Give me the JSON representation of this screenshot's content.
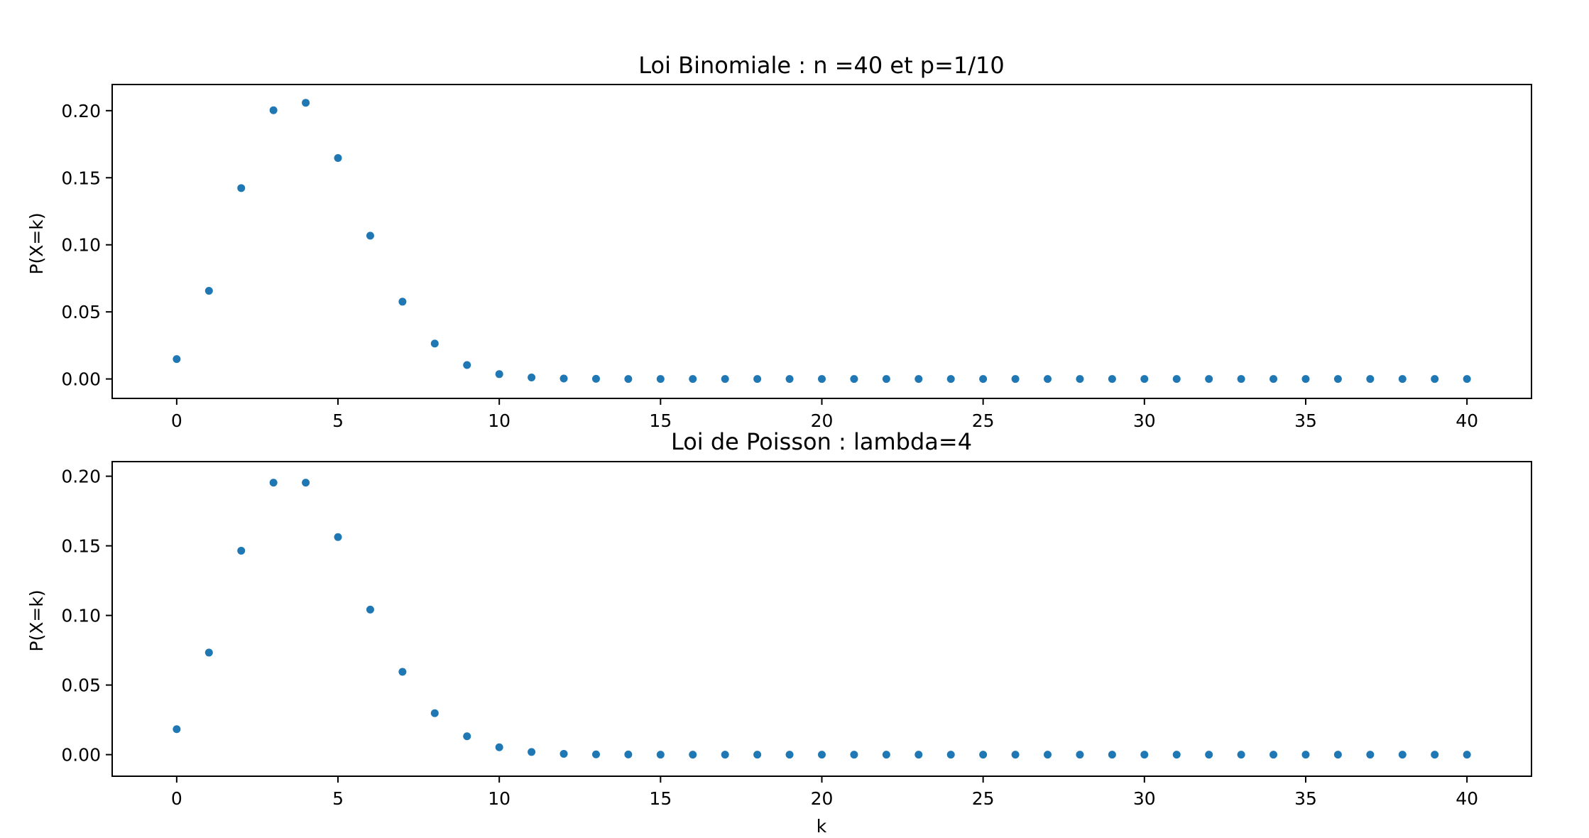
{
  "chart_data": [
    {
      "type": "scatter",
      "title": "Loi Binomiale : n =40 et p=1/10",
      "xlabel": "",
      "ylabel": "P(X=k)",
      "xlim": [
        -2,
        42
      ],
      "ylim": [
        -0.0145,
        0.2195
      ],
      "xticks": [
        0,
        5,
        10,
        15,
        20,
        25,
        30,
        35,
        40
      ],
      "xtick_labels": [
        "0",
        "5",
        "10",
        "15",
        "20",
        "25",
        "30",
        "35",
        "40"
      ],
      "yticks": [
        0.0,
        0.05,
        0.1,
        0.15,
        0.2
      ],
      "ytick_labels": [
        "0.00",
        "0.05",
        "0.10",
        "0.15",
        "0.20"
      ],
      "grid": false,
      "marker_color": "#1f77b4",
      "series": [
        {
          "x": [
            0,
            1,
            2,
            3,
            4,
            5,
            6,
            7,
            8,
            9,
            10,
            11,
            12,
            13,
            14,
            15,
            16,
            17,
            18,
            19,
            20,
            21,
            22,
            23,
            24,
            25,
            26,
            27,
            28,
            29,
            30,
            31,
            32,
            33,
            34,
            35,
            36,
            37,
            38,
            39,
            40
          ],
          "y": [
            0.0148,
            0.0657,
            0.1423,
            0.2003,
            0.2059,
            0.1647,
            0.1068,
            0.0576,
            0.0264,
            0.0104,
            0.0036,
            0.0011,
            0.0003,
            0.0001,
            0,
            0,
            0,
            0,
            0,
            0,
            0,
            0,
            0,
            0,
            0,
            0,
            0,
            0,
            0,
            0,
            0,
            0,
            0,
            0,
            0,
            0,
            0,
            0,
            0,
            0,
            0
          ]
        }
      ]
    },
    {
      "type": "scatter",
      "title": "Loi de Poisson : lambda=4",
      "xlabel": "k",
      "ylabel": "P(X=k)",
      "xlim": [
        -2,
        42
      ],
      "ylim": [
        -0.0155,
        0.2105
      ],
      "xticks": [
        0,
        5,
        10,
        15,
        20,
        25,
        30,
        35,
        40
      ],
      "xtick_labels": [
        "0",
        "5",
        "10",
        "15",
        "20",
        "25",
        "30",
        "35",
        "40"
      ],
      "yticks": [
        0.0,
        0.05,
        0.1,
        0.15,
        0.2
      ],
      "ytick_labels": [
        "0.00",
        "0.05",
        "0.10",
        "0.15",
        "0.20"
      ],
      "grid": false,
      "marker_color": "#1f77b4",
      "series": [
        {
          "x": [
            0,
            1,
            2,
            3,
            4,
            5,
            6,
            7,
            8,
            9,
            10,
            11,
            12,
            13,
            14,
            15,
            16,
            17,
            18,
            19,
            20,
            21,
            22,
            23,
            24,
            25,
            26,
            27,
            28,
            29,
            30,
            31,
            32,
            33,
            34,
            35,
            36,
            37,
            38,
            39,
            40
          ],
          "y": [
            0.0183,
            0.0733,
            0.1465,
            0.1954,
            0.1954,
            0.1563,
            0.1042,
            0.0595,
            0.0298,
            0.0132,
            0.0053,
            0.0019,
            0.0006,
            0.0002,
            0.0001,
            0,
            0,
            0,
            0,
            0,
            0,
            0,
            0,
            0,
            0,
            0,
            0,
            0,
            0,
            0,
            0,
            0,
            0,
            0,
            0,
            0,
            0,
            0,
            0,
            0,
            0
          ]
        }
      ]
    }
  ]
}
